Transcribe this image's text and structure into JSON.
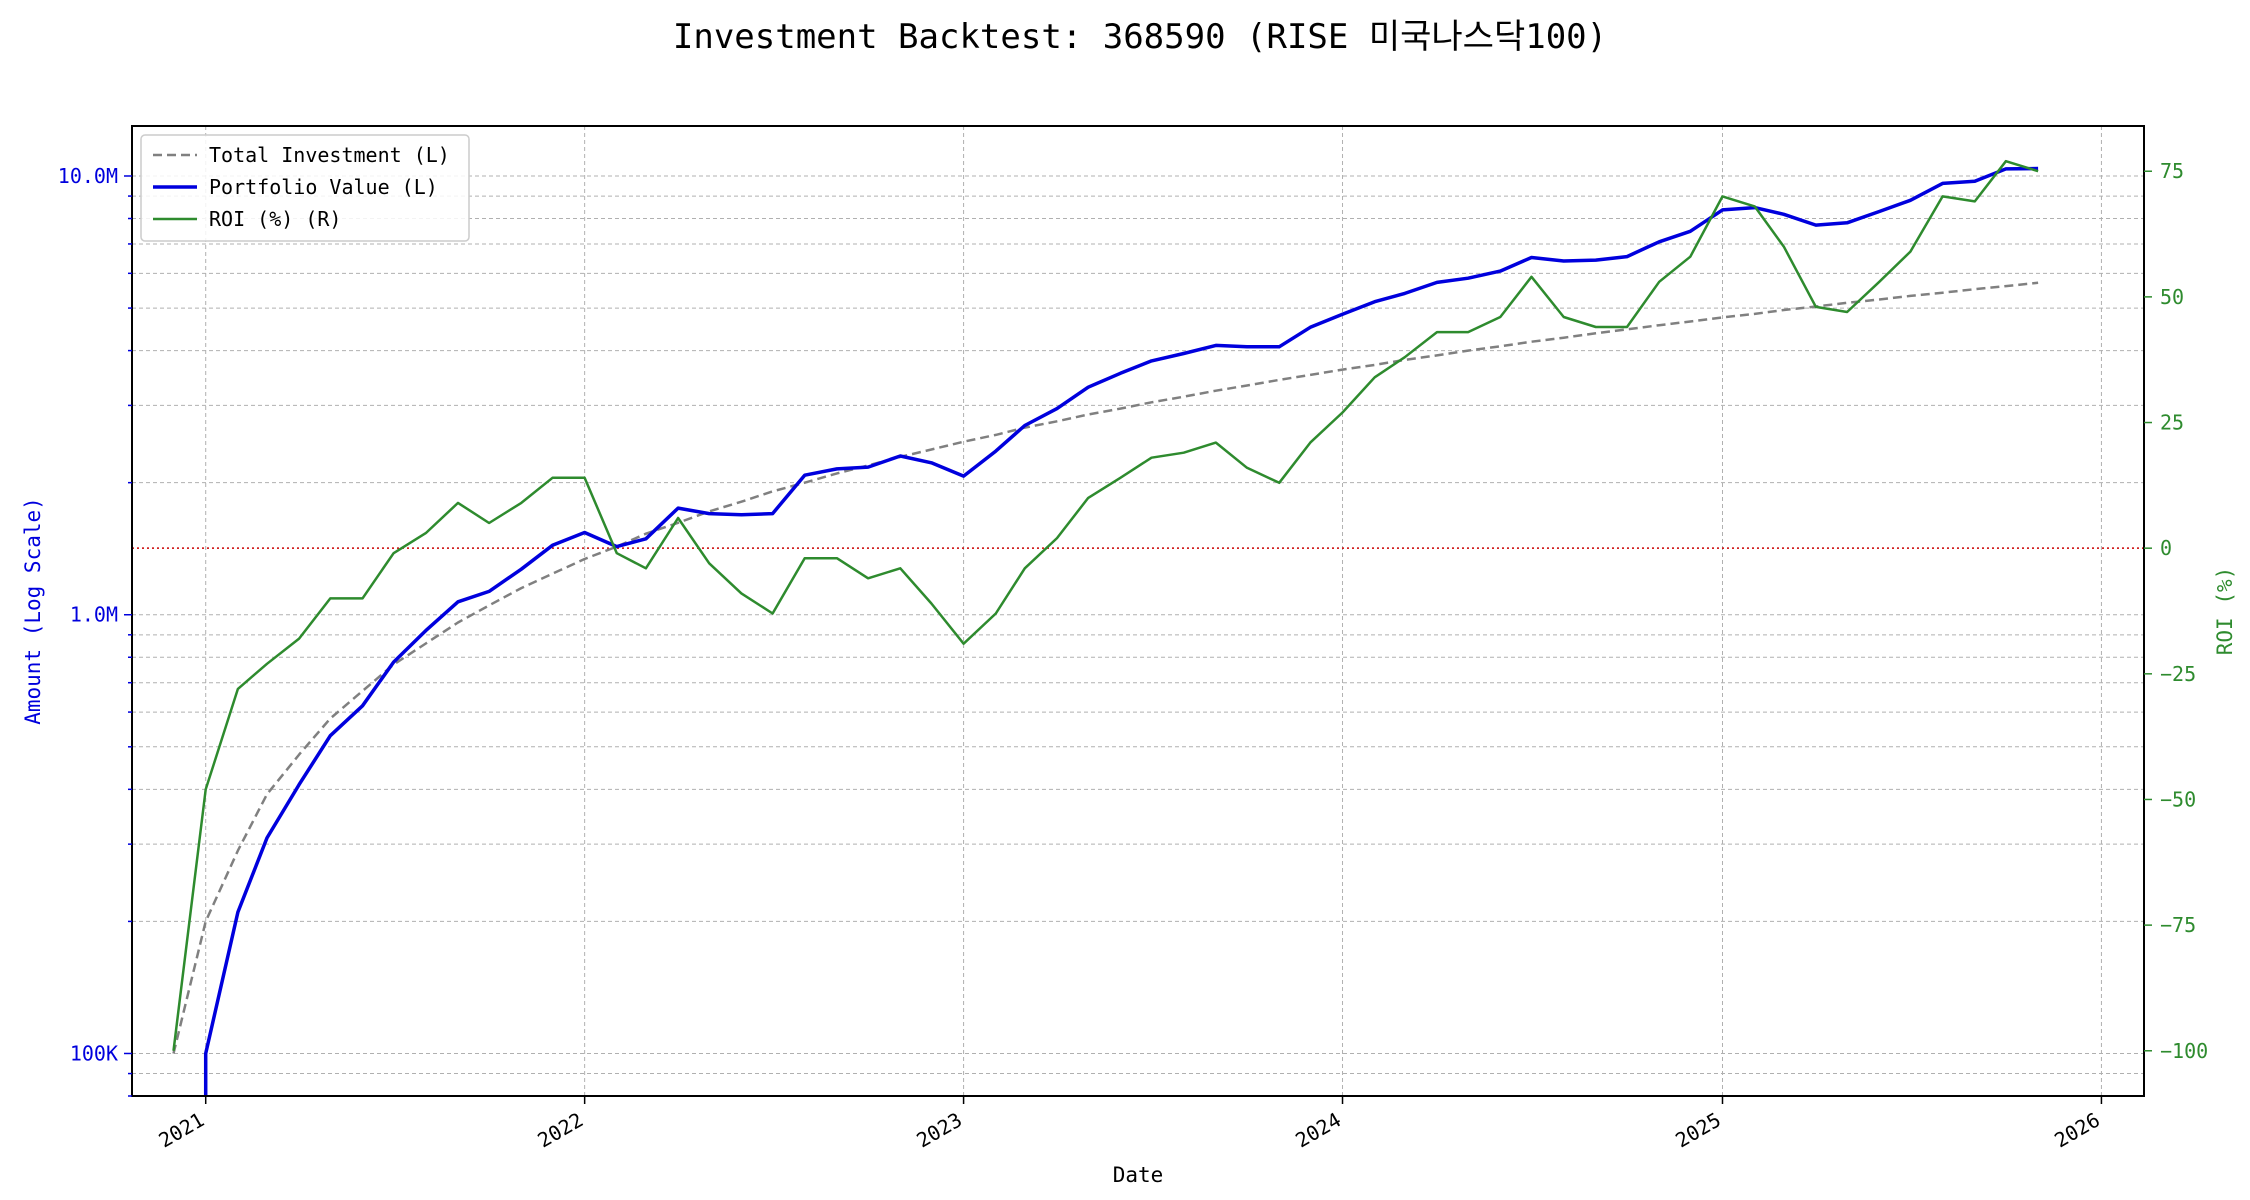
{
  "chart_data": {
    "type": "line",
    "title": "Investment Backtest: 368590 (RISE 미국나스닥100)",
    "xlabel": "Date",
    "ylabel_left": "Amount (Log Scale)",
    "ylabel_right": "ROI (%)",
    "left_scale": "log",
    "left_ylim": [
      80000,
      13000000
    ],
    "left_ticks": [
      100000,
      1000000,
      10000000
    ],
    "left_tick_labels": [
      "100K",
      "1.0M",
      "10.0M"
    ],
    "right_ylim": [
      -109,
      84
    ],
    "right_ticks": [
      -100,
      -75,
      -50,
      -25,
      0,
      25,
      50,
      75
    ],
    "right_tick_labels": [
      "−100",
      "−75",
      "−50",
      "−25",
      "0",
      "25",
      "50",
      "75"
    ],
    "x_ticks": [
      "2021-01-01",
      "2022-01-01",
      "2023-01-01",
      "2024-01-01",
      "2025-01-01",
      "2026-01-01"
    ],
    "x_tick_labels": [
      "2021",
      "2022",
      "2023",
      "2024",
      "2025",
      "2026"
    ],
    "xlim": [
      "2020-10-22",
      "2026-02-11"
    ],
    "grid": true,
    "legend_position": "top-left",
    "reference_line": {
      "value": 0,
      "axis": "right",
      "color": "#cc0000",
      "style": "dotted"
    },
    "colors": {
      "investment": "#808080",
      "portfolio": "#0000dd",
      "roi": "#2e8b2e",
      "left_axis": "#0000dd",
      "right_axis": "#2e8b2e"
    },
    "x": [
      "2020-12-01",
      "2021-01-01",
      "2021-02-01",
      "2021-03-01",
      "2021-04-01",
      "2021-05-01",
      "2021-06-01",
      "2021-07-01",
      "2021-08-01",
      "2021-09-01",
      "2021-10-01",
      "2021-11-01",
      "2021-12-01",
      "2022-01-01",
      "2022-02-01",
      "2022-03-01",
      "2022-04-01",
      "2022-05-01",
      "2022-06-01",
      "2022-07-01",
      "2022-08-01",
      "2022-09-01",
      "2022-10-01",
      "2022-11-01",
      "2022-12-01",
      "2023-01-01",
      "2023-02-01",
      "2023-03-01",
      "2023-04-01",
      "2023-05-01",
      "2023-06-01",
      "2023-07-01",
      "2023-08-01",
      "2023-09-01",
      "2023-10-01",
      "2023-11-01",
      "2023-12-01",
      "2024-01-01",
      "2024-02-01",
      "2024-03-01",
      "2024-04-01",
      "2024-05-01",
      "2024-06-01",
      "2024-07-01",
      "2024-08-01",
      "2024-09-01",
      "2024-10-01",
      "2024-11-01",
      "2024-12-01",
      "2025-01-01",
      "2025-02-01",
      "2025-03-01",
      "2025-04-01",
      "2025-05-01",
      "2025-06-01",
      "2025-07-01",
      "2025-08-01",
      "2025-09-01",
      "2025-10-01",
      "2025-11-01"
    ],
    "series": [
      {
        "name": "Total Investment (L)",
        "axis": "left",
        "style": "dashed",
        "values": [
          100000,
          200000,
          290000,
          390000,
          480000,
          580000,
          670000,
          770000,
          860000,
          960000,
          1050000,
          1150000,
          1240000,
          1340000,
          1430000,
          1530000,
          1620000,
          1720000,
          1810000,
          1910000,
          2000000,
          2100000,
          2190000,
          2290000,
          2380000,
          2480000,
          2570000,
          2670000,
          2760000,
          2860000,
          2950000,
          3050000,
          3140000,
          3240000,
          3330000,
          3430000,
          3520000,
          3620000,
          3710000,
          3810000,
          3900000,
          4000000,
          4090000,
          4190000,
          4280000,
          4380000,
          4470000,
          4570000,
          4660000,
          4760000,
          4850000,
          4950000,
          5040000,
          5140000,
          5230000,
          5330000,
          5420000,
          5520000,
          5610000,
          5710000
        ]
      },
      {
        "name": "Portfolio Value (L)",
        "axis": "left",
        "style": "solid",
        "values": [
          null,
          100000,
          210000,
          310000,
          410000,
          530000,
          620000,
          780000,
          920000,
          1070000,
          1130000,
          1270000,
          1440000,
          1540000,
          1430000,
          1490000,
          1750000,
          1700000,
          1690000,
          1700000,
          2080000,
          2150000,
          2170000,
          2300000,
          2220000,
          2070000,
          2360000,
          2700000,
          2950000,
          3300000,
          3550000,
          3790000,
          3940000,
          4110000,
          4080000,
          4080000,
          4520000,
          4840000,
          5170000,
          5400000,
          5720000,
          5850000,
          6070000,
          6520000,
          6400000,
          6430000,
          6550000,
          7080000,
          7480000,
          8370000,
          8470000,
          8180000,
          7730000,
          7820000,
          8300000,
          8800000,
          9620000,
          9730000,
          10380000,
          10400000
        ]
      },
      {
        "name": "ROI (%) (R)",
        "axis": "right",
        "style": "solid",
        "values": [
          -100,
          -48,
          -28,
          -23,
          -18,
          -10,
          -10,
          -1,
          3,
          9,
          5,
          9,
          14,
          14,
          -1,
          -4,
          6,
          -3,
          -9,
          -13,
          -2,
          -2,
          -6,
          -4,
          -11,
          -19,
          -13,
          -4,
          2,
          10,
          14,
          18,
          19,
          21,
          16,
          13,
          21,
          27,
          34,
          38,
          43,
          43,
          46,
          54,
          46,
          44,
          44,
          53,
          58,
          70,
          68,
          60,
          48,
          47,
          53,
          59,
          70,
          69,
          77,
          75
        ]
      }
    ]
  }
}
